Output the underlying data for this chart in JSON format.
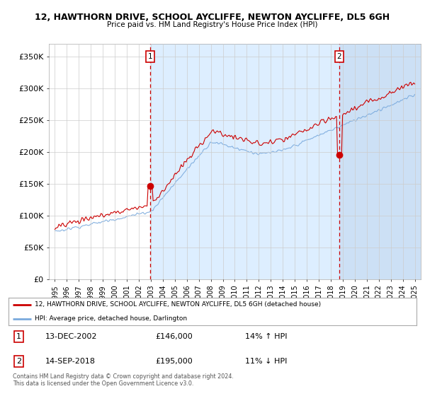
{
  "title": "12, HAWTHORN DRIVE, SCHOOL AYCLIFFE, NEWTON AYCLIFFE, DL5 6GH",
  "subtitle": "Price paid vs. HM Land Registry's House Price Index (HPI)",
  "ylabel_ticks": [
    "£0",
    "£50K",
    "£100K",
    "£150K",
    "£200K",
    "£250K",
    "£300K",
    "£350K"
  ],
  "ytick_values": [
    0,
    50000,
    100000,
    150000,
    200000,
    250000,
    300000,
    350000
  ],
  "ylim": [
    0,
    370000
  ],
  "sale1_date": "13-DEC-2002",
  "sale1_price": 146000,
  "sale1_x": 2002.96,
  "sale2_date": "14-SEP-2018",
  "sale2_price": 195000,
  "sale2_x": 2018.71,
  "legend_line1": "12, HAWTHORN DRIVE, SCHOOL AYCLIFFE, NEWTON AYCLIFFE, DL5 6GH (detached house)",
  "legend_line2": "HPI: Average price, detached house, Darlington",
  "table_row1": [
    "1",
    "13-DEC-2002",
    "£146,000",
    "14% ↑ HPI"
  ],
  "table_row2": [
    "2",
    "14-SEP-2018",
    "£195,000",
    "11% ↓ HPI"
  ],
  "footer": "Contains HM Land Registry data © Crown copyright and database right 2024.\nThis data is licensed under the Open Government Licence v3.0.",
  "hpi_color": "#7aaadd",
  "price_color": "#cc0000",
  "vline_color": "#cc0000",
  "shade1_color": "#ddeeff",
  "shade2_color": "#cce0f5",
  "background_color": "#ffffff",
  "grid_color": "#cccccc",
  "xmin": 1994.5,
  "xmax": 2025.5
}
